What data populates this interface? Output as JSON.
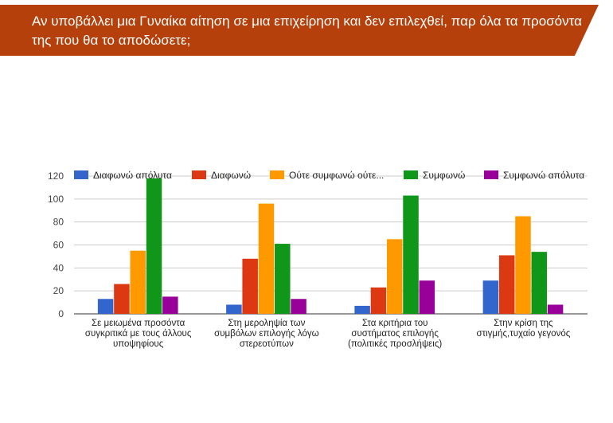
{
  "header": {
    "title": "Αν υποβάλλει μια Γυναίκα αίτηση σε μια επιχείρηση και δεν επιλεχθεί, παρ όλα τα προσόντα της που θα το αποδώσετε;"
  },
  "chart_data": {
    "type": "bar",
    "title": "",
    "xlabel": "",
    "ylabel": "",
    "ylim": [
      0,
      120
    ],
    "yticks": [
      0,
      20,
      40,
      60,
      80,
      100,
      120
    ],
    "grid": true,
    "legend_position": "top",
    "categories": [
      [
        "Σε μειωμένα προσόντα",
        "συγκριτικά με τους άλλους",
        "υποψηφίους"
      ],
      [
        "Στη μεροληψία των",
        "συμβόλων επιλογής λόγω",
        "στερεοτύπων"
      ],
      [
        "Στα κριτήρια του",
        "συστήματος επιλογής",
        "(πολιτικές προσλήψεις)"
      ],
      [
        "Στην κρίση της",
        "στιγμής,τυχαίο γεγονός"
      ]
    ],
    "series": [
      {
        "name": "Διαφωνώ απόλυτα",
        "color": "#3366cc",
        "values": [
          13,
          8,
          7,
          29
        ]
      },
      {
        "name": "Διαφωνώ",
        "color": "#dc3912",
        "values": [
          26,
          48,
          23,
          51
        ]
      },
      {
        "name": "Ούτε συμφωνώ ούτε...",
        "color": "#ff9900",
        "values": [
          55,
          96,
          65,
          85
        ]
      },
      {
        "name": "Συμφωνώ",
        "color": "#109618",
        "values": [
          118,
          61,
          103,
          54
        ]
      },
      {
        "name": "Συμφωνώ απόλυτα",
        "color": "#990099",
        "values": [
          15,
          13,
          29,
          8
        ]
      }
    ]
  }
}
